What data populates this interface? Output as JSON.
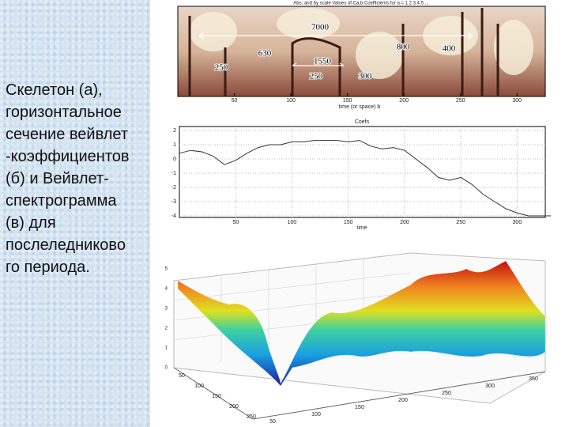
{
  "caption_lines": [
    "Скелетон (а),",
    "горизонтальное",
    "сечение вейвлет",
    "-коэффициентов",
    "(б) и Вейвлет-",
    "спектрограмма",
    "(в) для",
    "послеледниково",
    "го периода."
  ],
  "skeleton": {
    "title": "Abs. and by scale Values of Ca,b Coefficients for a = 1 2 3 4 5 ...",
    "xlabel": "time (or space) b",
    "xlim": [
      0,
      325
    ],
    "xticks": [
      50,
      100,
      150,
      200,
      250,
      300
    ],
    "annotations": [
      "7000",
      "630",
      "1550",
      "800",
      "400",
      "250",
      "250",
      "300"
    ]
  },
  "chart_data": {
    "type": "line",
    "title": "Coefs",
    "xlabel": "time",
    "color": "#333333",
    "x": [
      0,
      10,
      20,
      30,
      40,
      50,
      60,
      70,
      80,
      90,
      100,
      110,
      120,
      130,
      140,
      150,
      160,
      170,
      180,
      190,
      200,
      210,
      220,
      230,
      240,
      250,
      260,
      270,
      280,
      290,
      300,
      310,
      320,
      330
    ],
    "values": [
      0.4,
      0.6,
      0.5,
      0.2,
      -0.4,
      -0.1,
      0.4,
      0.8,
      1.0,
      1.0,
      1.2,
      1.2,
      1.3,
      1.3,
      1.3,
      1.2,
      1.3,
      0.9,
      0.7,
      0.8,
      0.6,
      0,
      -0.6,
      -1.3,
      -1.5,
      -1.3,
      -1.8,
      -2.5,
      -3.0,
      -3.5,
      -3.8,
      -4.0,
      -4.0,
      -4.0
    ],
    "xlim": [
      0,
      325
    ],
    "ylim": [
      -4,
      2
    ],
    "xticks": [
      50,
      100,
      150,
      200,
      250,
      300
    ],
    "yticks": [
      -4,
      -3,
      -2,
      -1,
      0,
      1,
      2
    ],
    "grid": true
  },
  "spectrogram": {
    "depth_ticks": [
      50,
      100,
      150,
      200,
      250
    ],
    "front_ticks": [
      50,
      100,
      150,
      200,
      250,
      300,
      350
    ],
    "vertical_ticks": [
      0,
      1,
      2,
      3,
      4,
      5
    ]
  }
}
